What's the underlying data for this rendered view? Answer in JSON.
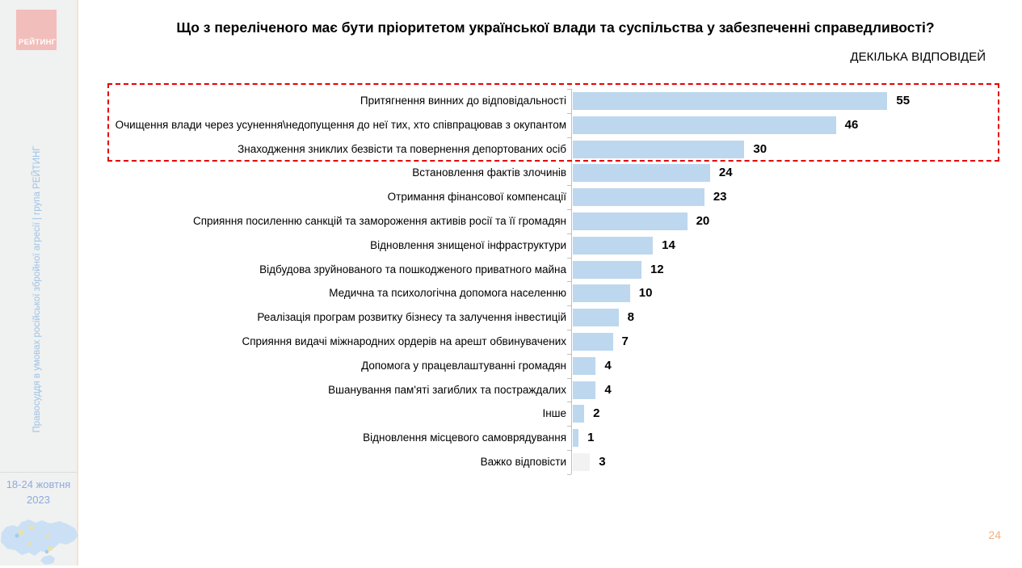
{
  "sidebar": {
    "logo_text": "РЕЙТИНГ",
    "vertical_text": "Правосуддя в умовах російської збройної агресії | група РЕЙТИНГ",
    "date_line1": "18-24 жовтня",
    "date_line2": "2023"
  },
  "header": {
    "title": "Що з переліченого має бути пріоритетом української влади та суспільства у забезпеченні справедливості?",
    "subtitle": "ДЕКІЛЬКА ВІДПОВІДЕЙ"
  },
  "page_number": "24",
  "colors": {
    "bar": "#BDD7EE",
    "bar_muted": "#F2F2F2",
    "highlight_border": "#E60000",
    "accent_blue": "#8FAADC",
    "vertical_text_blue": "#9DC3E6",
    "logo_pink": "#F2BEBB",
    "page_number_orange": "#F4B183"
  },
  "chart_data": {
    "type": "bar",
    "orientation": "horizontal",
    "title": "Що з переліченого має бути пріоритетом української влади та суспільства у забезпеченні справедливості?",
    "subtitle": "ДЕКІЛЬКА ВІДПОВІДЕЙ",
    "categories": [
      "Притягнення винних до відповідальності",
      "Очищення влади через усунення\\недопущення до неї тих, хто співпрацював  з окупантом",
      "Знаходження зниклих безвісти та повернення депортованих осіб",
      "Встановлення фактів злочинів",
      "Отримання фінансової компенсації",
      "Сприяння посиленню санкцій та замороження активів росії та її громадян",
      "Відновлення знищеної інфраструктури",
      "Відбудова зруйнованого та пошкодженого приватного майна",
      "Медична та психологічна допомога населенню",
      "Реалізація програм розвитку бізнесу та залучення інвестицій",
      "Сприяння видачі міжнародних ордерів на арешт обвинувачених",
      "Допомога у працевлаштуванні громадян",
      "Вшанування пам'яті загиблих та постраждалих",
      "Інше",
      "Відновлення місцевого самоврядування",
      "Важко відповісти"
    ],
    "values": [
      55,
      46,
      30,
      24,
      23,
      20,
      14,
      12,
      10,
      8,
      7,
      4,
      4,
      2,
      1,
      3
    ],
    "highlighted_top_n": 3,
    "muted_last_category": true,
    "xlim": [
      0,
      75
    ],
    "value_labels_shown": true,
    "grid": false,
    "legend": false
  }
}
